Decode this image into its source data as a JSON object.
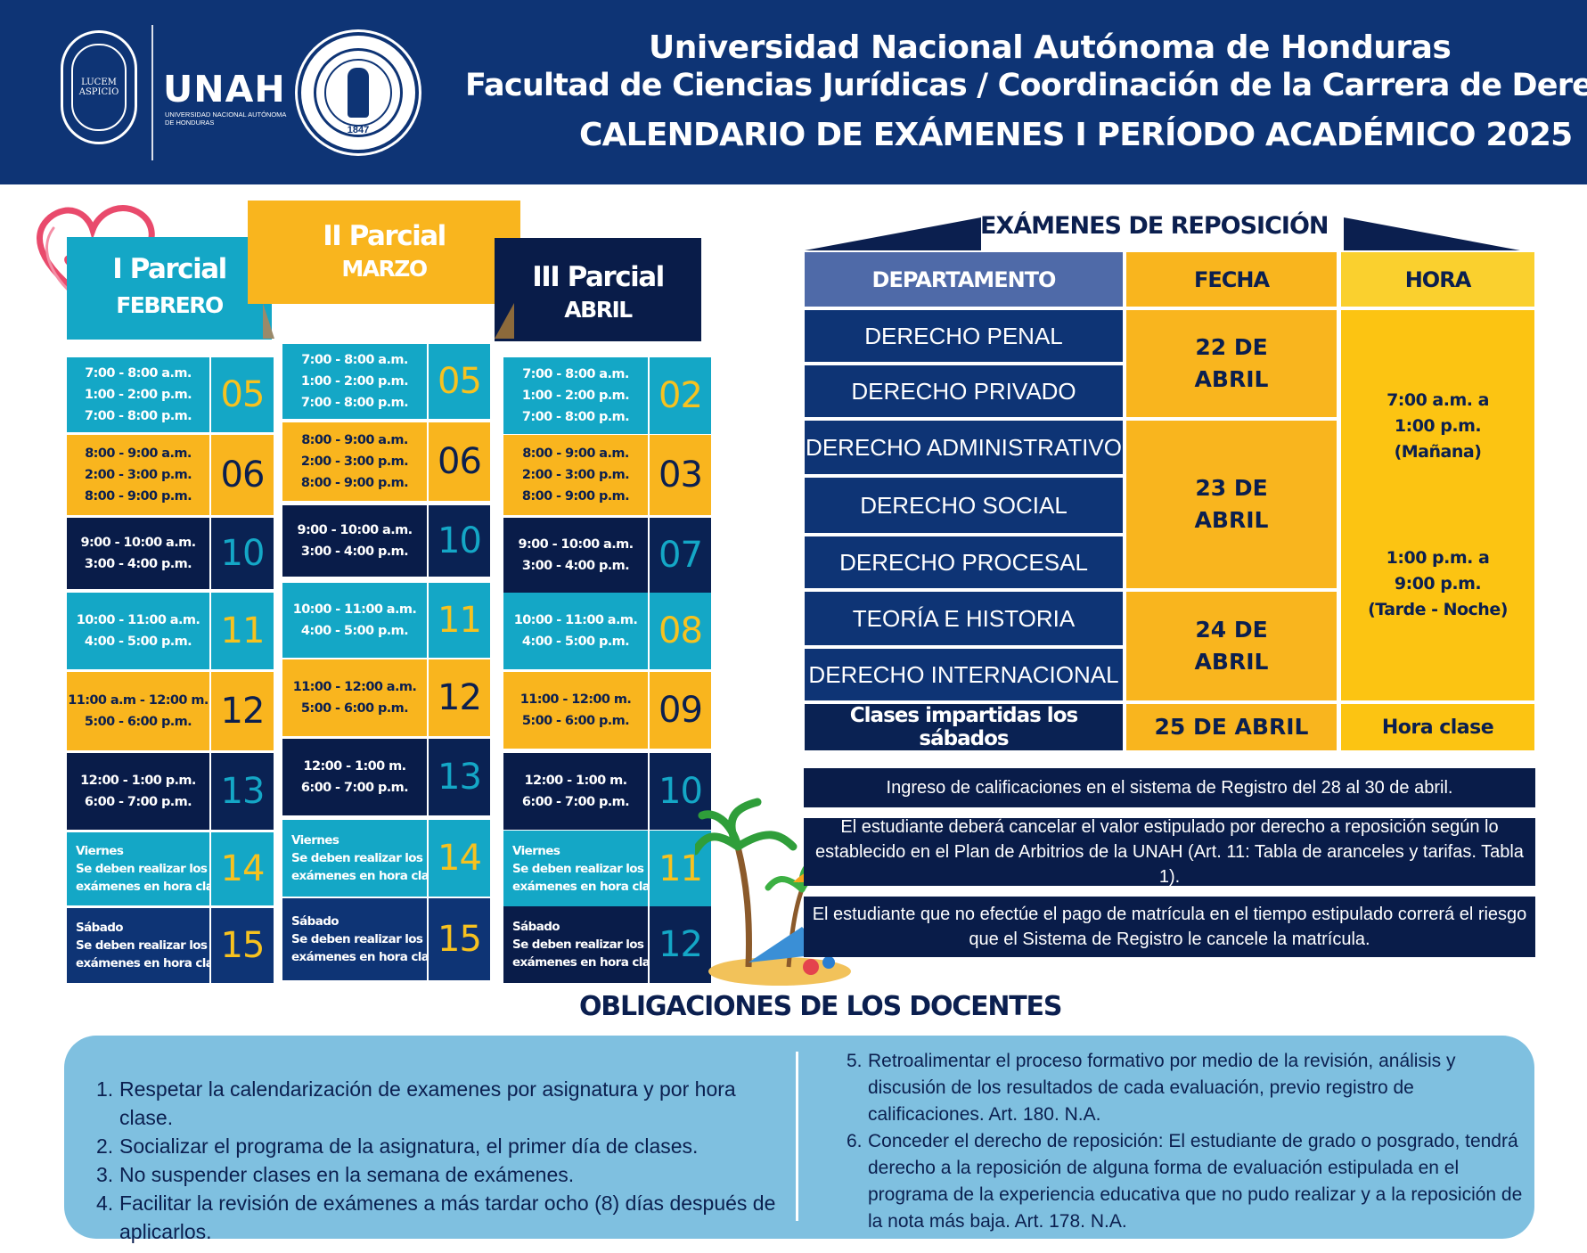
{
  "header": {
    "seal_text": "LUCEM ASPICIO",
    "unah_word": "UNAH",
    "unah_sub": "UNIVERSIDAD NACIONAL AUTÓNOMA DE HONDURAS",
    "fcj_year": "1847",
    "line1": "Universidad Nacional Autónoma de Honduras",
    "line2": "Facultad de Ciencias Jurídicas / Coordinación de la Carrera de Derecho",
    "line3": "CALENDARIO DE EXÁMENES I PERÍODO ACADÉMICO 2025"
  },
  "parciales": [
    {
      "name": "I Parcial",
      "month": "FEBRERO",
      "rows": [
        {
          "times": [
            "7:00 - 8:00 a.m.",
            "1:00 - 2:00 p.m.",
            "7:00 - 8:00 p.m."
          ],
          "day": "05",
          "color": "blue"
        },
        {
          "times": [
            "8:00 - 9:00 a.m.",
            "2:00 - 3:00 p.m.",
            "8:00 - 9:00 p.m."
          ],
          "day": "06",
          "color": "yellow"
        },
        {
          "times": [
            "9:00 - 10:00 a.m.",
            "3:00 -  4:00 p.m."
          ],
          "day": "10",
          "color": "navy"
        },
        {
          "times": [
            "10:00 - 11:00 a.m.",
            "4:00 -   5:00 p.m."
          ],
          "day": "11",
          "color": "blue"
        },
        {
          "times": [
            "11:00 a.m - 12:00 m.",
            "5:00 -  6:00 p.m."
          ],
          "day": "12",
          "color": "yellow"
        },
        {
          "times": [
            "12:00 - 1:00 p.m.",
            "6:00 -  7:00 p.m."
          ],
          "day": "13",
          "color": "navy"
        },
        {
          "times": [
            "Viernes",
            "Se deben realizar los",
            "exámenes en hora clase"
          ],
          "day": "14",
          "color": "blue",
          "note": true
        },
        {
          "times": [
            "Sábado",
            "Se deben realizar los",
            "exámenes en hora clase"
          ],
          "day": "15",
          "color": "dblue",
          "note": true
        }
      ]
    },
    {
      "name": "II Parcial",
      "month": "MARZO",
      "rows": [
        {
          "times": [
            "7:00 - 8:00 a.m.",
            "1:00 - 2:00 p.m.",
            "7:00 - 8:00 p.m."
          ],
          "day": "05",
          "color": "blue"
        },
        {
          "times": [
            "8:00 - 9:00 a.m.",
            "2:00 - 3:00 p.m.",
            "8:00 - 9:00 p.m."
          ],
          "day": "06",
          "color": "yellow"
        },
        {
          "times": [
            "9:00 - 10:00 a.m.",
            "3:00 -  4:00 p.m."
          ],
          "day": "10",
          "color": "navy"
        },
        {
          "times": [
            "10:00 - 11:00 a.m.",
            "4:00 -   5:00 p.m."
          ],
          "day": "11",
          "color": "blue"
        },
        {
          "times": [
            "11:00 - 12:00 a.m.",
            "5:00 -  6:00 p.m."
          ],
          "day": "12",
          "color": "yellow"
        },
        {
          "times": [
            "12:00 - 1:00 m.",
            "6:00 -  7:00 p.m."
          ],
          "day": "13",
          "color": "navy"
        },
        {
          "times": [
            "Viernes",
            "Se deben realizar los",
            "exámenes en hora clase"
          ],
          "day": "14",
          "color": "blue",
          "note": true
        },
        {
          "times": [
            "Sábado",
            "Se deben realizar los",
            "exámenes en hora clase"
          ],
          "day": "15",
          "color": "dblue",
          "note": true
        }
      ]
    },
    {
      "name": "III Parcial",
      "month": "ABRIL",
      "rows": [
        {
          "times": [
            "7:00 - 8:00 a.m.",
            "1:00 - 2:00 p.m.",
            "7:00 - 8:00 p.m."
          ],
          "day": "02",
          "color": "blue"
        },
        {
          "times": [
            "8:00 - 9:00 a.m.",
            "2:00 - 3:00 p.m.",
            "8:00 - 9:00 p.m."
          ],
          "day": "03",
          "color": "yellow"
        },
        {
          "times": [
            "9:00 - 10:00 a.m.",
            "3:00 -  4:00 p.m."
          ],
          "day": "07",
          "color": "navy"
        },
        {
          "times": [
            "10:00 - 11:00 a.m.",
            "4:00 -  5:00 p.m."
          ],
          "day": "08",
          "color": "blue"
        },
        {
          "times": [
            "11:00 - 12:00 m.",
            "5:00 -  6:00 p.m."
          ],
          "day": "09",
          "color": "yellow"
        },
        {
          "times": [
            "12:00 - 1:00 m.",
            "6:00 -  7:00 p.m."
          ],
          "day": "10",
          "color": "navy"
        },
        {
          "times": [
            "Viernes",
            "Se deben realizar los",
            "exámenes en hora clase"
          ],
          "day": "11",
          "color": "blue",
          "note": true
        },
        {
          "times": [
            "Sábado",
            "Se deben realizar los",
            "exámenes en hora clase"
          ],
          "day": "12",
          "color": "navy",
          "note": true
        }
      ]
    }
  ],
  "reposicion": {
    "title": "EXÁMENES DE REPOSICIÓN",
    "headers": {
      "departamento": "DEPARTAMENTO",
      "fecha": "FECHA",
      "hora": "HORA"
    },
    "departamentos": [
      "DERECHO PENAL",
      "DERECHO PRIVADO",
      "DERECHO ADMINISTRATIVO",
      "DERECHO SOCIAL",
      "DERECHO PROCESAL",
      "TEORÍA E HISTORIA",
      "DERECHO INTERNACIONAL"
    ],
    "fechas": [
      {
        "l1": "22  DE",
        "l2": "ABRIL"
      },
      {
        "l1": "23  DE",
        "l2": "ABRIL"
      },
      {
        "l1": "24  DE",
        "l2": "ABRIL"
      }
    ],
    "hora_manana": {
      "l1": "7:00 a.m. a",
      "l2": "1:00 p.m.",
      "l3": "(Mañana)"
    },
    "hora_tarde": {
      "l1": "1:00 p.m. a",
      "l2": "9:00 p.m.",
      "l3": "(Tarde - Noche)"
    },
    "sabado_row": {
      "dep": "Clases impartidas los sábados",
      "fecha": "25  DE ABRIL",
      "hora": "Hora clase"
    }
  },
  "notes": [
    {
      "l1": "Ingreso de calificaciones en el sistema de Registro del 28 al 30 de abril."
    },
    {
      "l1": "El estudiante deberá cancelar el valor estipulado por derecho a reposición según lo",
      "l2": "establecido en el Plan de Arbitrios de la UNAH (Art. 11: Tabla de aranceles y tarifas. Tabla 1)."
    },
    {
      "l1": "El estudiante que no efectúe el pago de matrícula en el tiempo estipulado correrá el riesgo",
      "l2": "que el Sistema de Registro le cancele la matrícula."
    }
  ],
  "obligaciones": {
    "title": "OBLIGACIONES DE LOS DOCENTES",
    "left": [
      {
        "n": "1.",
        "t": "Respetar la calendarización de examenes por asignatura y por hora clase."
      },
      {
        "n": "2.",
        "t": "Socializar el programa de la  asignatura, el primer día de clases."
      },
      {
        "n": "3.",
        "t": "No suspender clases en la semana de exámenes."
      },
      {
        "n": "4.",
        "t": "Facilitar la  revisión de exámenes a más tardar ocho (8) días  después de aplicarlos."
      }
    ],
    "right": [
      {
        "n": "5.",
        "t": "Retroalimentar el proceso formativo por medio de la revisión, análisis y discusión de los resultados de cada evaluación, previo registro de calificaciones. Art. 180. N.A."
      },
      {
        "n": "6.",
        "t": "Conceder el derecho de reposición: El estudiante de grado o posgrado, tendrá derecho a la reposición de alguna forma de evaluación estipulada en el programa de la experiencia educativa que no pudo realizar y a  la reposición de la nota más baja. Art. 178. N.A."
      }
    ]
  },
  "colors": {
    "navy": "#0e3475",
    "dark_navy": "#091c49",
    "cyan": "#14a7c6",
    "yellow": "#f9b51e",
    "light_blue_box": "#7fc0e0"
  }
}
